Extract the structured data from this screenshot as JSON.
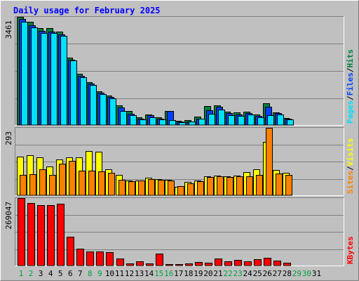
{
  "colors": {
    "background": "#c0c0c0",
    "plot_bg": "#c0c0c0",
    "title": "#0000ff",
    "hits": "#008040",
    "files": "#0040ff",
    "pages": "#00e0ff",
    "visits": "#ffff00",
    "sites": "#ff8000",
    "kbytes": "#ff0000",
    "weekday_label": "#000000",
    "weekend_label": "#00a040"
  },
  "chart_data": {
    "type": "bar",
    "title": "Daily usage for February 2025",
    "categories": [
      "1",
      "2",
      "3",
      "4",
      "5",
      "6",
      "7",
      "8",
      "9",
      "10",
      "11",
      "12",
      "13",
      "14",
      "15",
      "16",
      "17",
      "18",
      "19",
      "20",
      "21",
      "22",
      "23",
      "24",
      "25",
      "26",
      "27",
      "28",
      "29",
      "30",
      "31"
    ],
    "weekend_days": [
      "1",
      "2",
      "8",
      "9",
      "15",
      "16",
      "22",
      "23",
      "29",
      "30"
    ],
    "panels": [
      {
        "name": "top",
        "ymax_label": "3461",
        "ymax": 3461,
        "legend": [
          "Pages",
          "/",
          "Files",
          "/",
          "Hits"
        ],
        "legend_color_keys": [
          "pages",
          null,
          "files",
          null,
          "hits"
        ],
        "series": [
          {
            "name": "Hits",
            "color_key": "hits",
            "values": [
              3461,
              3300,
              3110,
              3095,
              2995,
              2150,
              1635,
              1367,
              1082,
              945,
              621,
              445,
              251,
              343,
              253,
              451,
              143,
              148,
              259,
              598,
              628,
              435,
              395,
              432,
              334,
              696,
              413,
              235,
              null,
              null,
              null
            ]
          },
          {
            "name": "Files",
            "color_key": "files",
            "values": [
              3390,
              3200,
              3020,
              3000,
              2890,
              2100,
              1580,
              1318,
              1038,
              901,
              551,
              357,
              200,
              315,
              209,
              451,
              117,
              120,
              209,
              471,
              577,
              390,
              345,
              383,
              290,
              577,
              375,
              199,
              null,
              null,
              null
            ]
          },
          {
            "name": "Pages",
            "color_key": "pages",
            "values": [
              3312,
              3115,
              2946,
              2953,
              2856,
              2067,
              1536,
              1270,
              1000,
              852,
              458,
              310,
              185,
              243,
              187,
              158,
              101,
              105,
              193,
              365,
              498,
              317,
              300,
              329,
              245,
              310,
              327,
              175,
              null,
              null,
              null
            ]
          }
        ]
      },
      {
        "name": "middle",
        "ymax_label": "293",
        "ymax": 293,
        "legend": [
          "Sites",
          "/",
          "Visits"
        ],
        "legend_color_keys": [
          "sites",
          null,
          "visits"
        ],
        "series": [
          {
            "name": "Visits",
            "color_key": "visits",
            "values": [
              167,
              175,
              165,
              125,
              156,
              165,
              165,
              192,
              190,
              114,
              90,
              64,
              65,
              77,
              71,
              66,
              37,
              57,
              65,
              83,
              84,
              83,
              86,
              100,
              112,
              232,
              110,
              97,
              null,
              null,
              null
            ]
          },
          {
            "name": "Sites",
            "color_key": "sites",
            "values": [
              90,
              93,
              114,
              90,
              138,
              151,
              107,
              106,
              104,
              98,
              66,
              60,
              64,
              70,
              66,
              64,
              39,
              52,
              60,
              79,
              81,
              80,
              83,
              83,
              90,
              293,
              96,
              87,
              null,
              null,
              null
            ]
          }
        ]
      },
      {
        "name": "bottom",
        "ymax_label": "269047",
        "ymax": 269047,
        "legend": [
          "KBytes"
        ],
        "legend_color_keys": [
          "kbytes"
        ],
        "series": [
          {
            "name": "KBytes",
            "color_key": "kbytes",
            "values": [
              269047,
              250000,
              242000,
              242000,
              246000,
              114500,
              67000,
              56500,
              56500,
              52000,
              27000,
              8000,
              18000,
              9000,
              46800,
              5200,
              5300,
              7800,
              13000,
              10000,
              27000,
              18000,
              21500,
              15700,
              24000,
              30000,
              21000,
              10400,
              null,
              null,
              null
            ]
          }
        ]
      }
    ]
  }
}
